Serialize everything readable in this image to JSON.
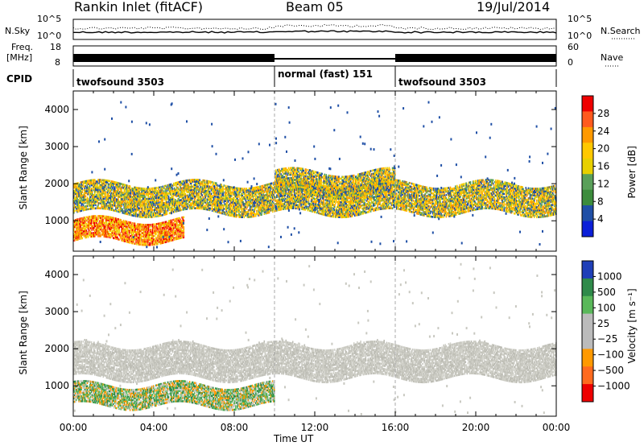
{
  "header": {
    "title": "Rankin Inlet (fitACF)",
    "beam": "Beam 05",
    "date": "19/Jul/2014"
  },
  "top_panel": {
    "left_label": "N.Sky",
    "right_label": "N.Search",
    "left_ticks": [
      "10^5",
      "10^0"
    ],
    "right_ticks": [
      "10^5",
      "10^0"
    ],
    "freq_label": "Freq.",
    "freq_unit": "[MHz]",
    "freq_ticks": [
      "18",
      "8"
    ],
    "nave_label": "Nave",
    "nave_ticks": [
      "60",
      "0"
    ],
    "cpid_label": "CPID",
    "cpid_segments": [
      {
        "name": "twofsound 3503",
        "start_h": 0,
        "end_h": 10
      },
      {
        "name": "normal (fast) 151",
        "start_h": 10,
        "end_h": 16
      },
      {
        "name": "twofsound 3503",
        "start_h": 16,
        "end_h": 24
      }
    ]
  },
  "chart_data": [
    {
      "type": "heatmap",
      "title": "Power",
      "ylabel": "Slant Range [km]",
      "xlabel": "Time UT",
      "x_ticks": [
        "00:00",
        "04:00",
        "08:00",
        "12:00",
        "16:00",
        "20:00",
        "00:00"
      ],
      "x_range_h": [
        0,
        24
      ],
      "y_ticks": [
        1000,
        2000,
        3000,
        4000
      ],
      "ylim": [
        180,
        4500
      ],
      "colorbar": {
        "label": "Power [dB]",
        "ticks": [
          "28",
          "24",
          "20",
          "16",
          "12",
          "8",
          "4"
        ],
        "colors": [
          "#ee0000",
          "#ff5a1e",
          "#ff9900",
          "#ffc800",
          "#e8d000",
          "#5aa05a",
          "#3c8c3c",
          "#1f4fa6",
          "#0b1fd8"
        ]
      },
      "bands": [
        {
          "start_h": 0.0,
          "end_h": 24.0,
          "low_km": 1200,
          "high_km": 2000,
          "level": "mid"
        },
        {
          "start_h": 0.0,
          "end_h": 5.5,
          "low_km": 450,
          "high_km": 1000,
          "level": "high"
        },
        {
          "start_h": 10.0,
          "end_h": 16.0,
          "low_km": 1700,
          "high_km": 2300,
          "level": "mid"
        }
      ]
    },
    {
      "type": "heatmap",
      "title": "Velocity",
      "ylabel": "Slant Range [km]",
      "xlabel": "Time UT",
      "x_ticks": [
        "00:00",
        "04:00",
        "08:00",
        "12:00",
        "16:00",
        "20:00",
        "00:00"
      ],
      "x_range_h": [
        0,
        24
      ],
      "y_ticks": [
        1000,
        2000,
        3000,
        4000
      ],
      "ylim": [
        180,
        4500
      ],
      "colorbar": {
        "label": "Velocity [m s⁻¹]",
        "ticks": [
          "1000",
          "500",
          "100",
          "25",
          "−25",
          "−100",
          "−500",
          "−1000"
        ],
        "colors": [
          "#1f3fb8",
          "#2f8a4a",
          "#5ab85a",
          "#bbbbbb",
          "#bbbbbb",
          "#ff9900",
          "#ff6a1e",
          "#ee0000"
        ]
      },
      "bands": [
        {
          "start_h": 0.0,
          "end_h": 24.0,
          "low_km": 1200,
          "high_km": 2100,
          "level": "ground"
        },
        {
          "start_h": 0.0,
          "end_h": 10.0,
          "low_km": 450,
          "high_km": 1000,
          "level": "positive"
        }
      ]
    }
  ],
  "colors": {
    "ground_scatter": "#c8c8c0",
    "grid_dash": "#aaaaaa"
  }
}
